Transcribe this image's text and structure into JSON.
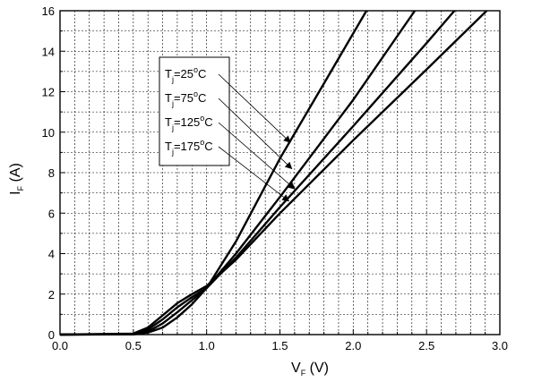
{
  "chart_data": {
    "type": "line",
    "xlabel": {
      "main": "V",
      "sub": "F",
      "unit": " (V)"
    },
    "ylabel": {
      "main": "I",
      "sub": "F",
      "unit": " (A)"
    },
    "xlim": [
      0.0,
      3.0
    ],
    "ylim": [
      0,
      16
    ],
    "x_ticks": [
      "0.0",
      "0.5",
      "1.0",
      "1.5",
      "2.0",
      "2.5",
      "3.0"
    ],
    "y_ticks": [
      "0",
      "2",
      "4",
      "6",
      "8",
      "10",
      "12",
      "14",
      "16"
    ],
    "grid": true,
    "legend_position": "upper-left-center",
    "series": [
      {
        "name_parts": {
          "a": "T",
          "sub": "j",
          "b": "=25",
          "sup": "o",
          "c": "C"
        },
        "x": [
          0,
          0.5,
          0.6,
          0.7,
          0.8,
          0.9,
          1.0,
          1.2,
          1.5,
          1.8,
          2.09
        ],
        "y": [
          0,
          0.01,
          0.1,
          0.35,
          0.85,
          1.5,
          2.3,
          4.6,
          8.7,
          12.4,
          16
        ]
      },
      {
        "name_parts": {
          "a": "T",
          "sub": "j",
          "b": "=75",
          "sup": "o",
          "c": "C"
        },
        "x": [
          0,
          0.5,
          0.6,
          0.7,
          0.8,
          0.9,
          1.0,
          1.2,
          1.5,
          2.0,
          2.42
        ],
        "y": [
          0,
          0.02,
          0.15,
          0.55,
          1.1,
          1.7,
          2.3,
          4.0,
          6.8,
          11.6,
          16
        ]
      },
      {
        "name_parts": {
          "a": "T",
          "sub": "j",
          "b": "=125",
          "sup": "o",
          "c": "C"
        },
        "x": [
          0,
          0.5,
          0.6,
          0.7,
          0.8,
          0.9,
          1.0,
          1.2,
          1.5,
          2.0,
          2.5,
          2.69
        ],
        "y": [
          0,
          0.03,
          0.25,
          0.75,
          1.35,
          1.85,
          2.3,
          3.8,
          6.3,
          10.3,
          14.4,
          16
        ]
      },
      {
        "name_parts": {
          "a": "T",
          "sub": "j",
          "b": "=175",
          "sup": "o",
          "c": "C"
        },
        "x": [
          0,
          0.5,
          0.6,
          0.7,
          0.8,
          0.9,
          1.0,
          1.2,
          1.5,
          2.0,
          2.5,
          2.91
        ],
        "y": [
          0,
          0.05,
          0.35,
          0.95,
          1.55,
          2.0,
          2.4,
          3.7,
          6.0,
          9.6,
          13.1,
          16
        ]
      }
    ],
    "legend_arrow_targets": [
      {
        "x": 1.57,
        "y": 9.5
      },
      {
        "x": 1.58,
        "y": 8.2
      },
      {
        "x": 1.6,
        "y": 7.2
      },
      {
        "x": 1.56,
        "y": 6.6
      }
    ]
  }
}
